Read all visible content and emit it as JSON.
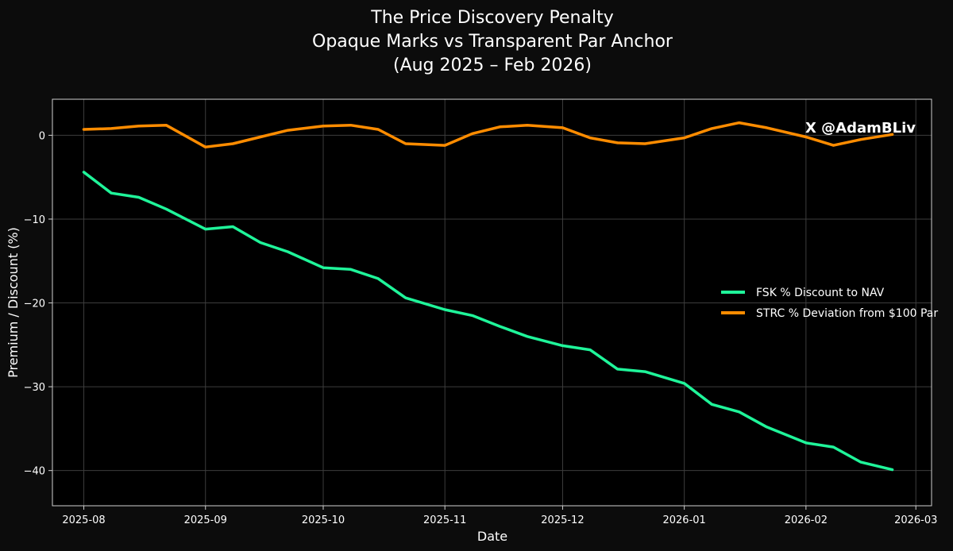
{
  "watermark": "X @AdamBLiv",
  "chart_data": {
    "type": "line",
    "title_lines": [
      "The Price Discovery Penalty",
      "Opaque Marks vs Transparent Par Anchor",
      "(Aug 2025 – Feb 2026)"
    ],
    "xlabel": "Date",
    "ylabel": "Premium / Discount (%)",
    "x_range": [
      "2025-07-24",
      "2026-03-05"
    ],
    "ylim": [
      -44.2,
      4.3
    ],
    "x_ticks": [
      "2025-08",
      "2025-09",
      "2025-10",
      "2025-11",
      "2025-12",
      "2026-01",
      "2026-02",
      "2026-03"
    ],
    "y_ticks": [
      0,
      -10,
      -20,
      -30,
      -40
    ],
    "grid": true,
    "legend_position": "center-right",
    "series": [
      {
        "name": "FSK % Discount to NAV",
        "color": "#1ff59a",
        "x": [
          "2025-08-01",
          "2025-08-08",
          "2025-08-15",
          "2025-08-22",
          "2025-09-01",
          "2025-09-08",
          "2025-09-15",
          "2025-09-22",
          "2025-10-01",
          "2025-10-08",
          "2025-10-15",
          "2025-10-22",
          "2025-11-01",
          "2025-11-08",
          "2025-11-15",
          "2025-11-22",
          "2025-12-01",
          "2025-12-08",
          "2025-12-15",
          "2025-12-22",
          "2026-01-01",
          "2026-01-08",
          "2026-01-15",
          "2026-01-22",
          "2026-02-01",
          "2026-02-08",
          "2026-02-15",
          "2026-02-23"
        ],
        "values": [
          -4.4,
          -6.9,
          -7.4,
          -8.8,
          -11.2,
          -10.9,
          -12.8,
          -13.9,
          -15.8,
          -16.0,
          -17.1,
          -19.4,
          -20.8,
          -21.5,
          -22.8,
          -24.0,
          -25.1,
          -25.6,
          -27.9,
          -28.2,
          -29.6,
          -32.1,
          -33.0,
          -34.8,
          -36.7,
          -37.2,
          -39.0,
          -39.9
        ]
      },
      {
        "name": "STRC % Deviation from $100 Par",
        "color": "#ff8c00",
        "x": [
          "2025-08-01",
          "2025-08-08",
          "2025-08-15",
          "2025-08-22",
          "2025-09-01",
          "2025-09-08",
          "2025-09-15",
          "2025-09-22",
          "2025-10-01",
          "2025-10-08",
          "2025-10-15",
          "2025-10-22",
          "2025-11-01",
          "2025-11-08",
          "2025-11-15",
          "2025-11-22",
          "2025-12-01",
          "2025-12-08",
          "2025-12-15",
          "2025-12-22",
          "2026-01-01",
          "2026-01-08",
          "2026-01-15",
          "2026-01-22",
          "2026-02-01",
          "2026-02-08",
          "2026-02-15",
          "2026-02-23"
        ],
        "values": [
          0.7,
          0.8,
          1.1,
          1.2,
          -1.4,
          -1.0,
          -0.2,
          0.6,
          1.1,
          1.2,
          0.7,
          -1.0,
          -1.2,
          0.2,
          1.0,
          1.2,
          0.9,
          -0.3,
          -0.9,
          -1.0,
          -0.3,
          0.8,
          1.5,
          0.9,
          -0.2,
          -1.2,
          -0.5,
          0.1
        ]
      }
    ]
  }
}
